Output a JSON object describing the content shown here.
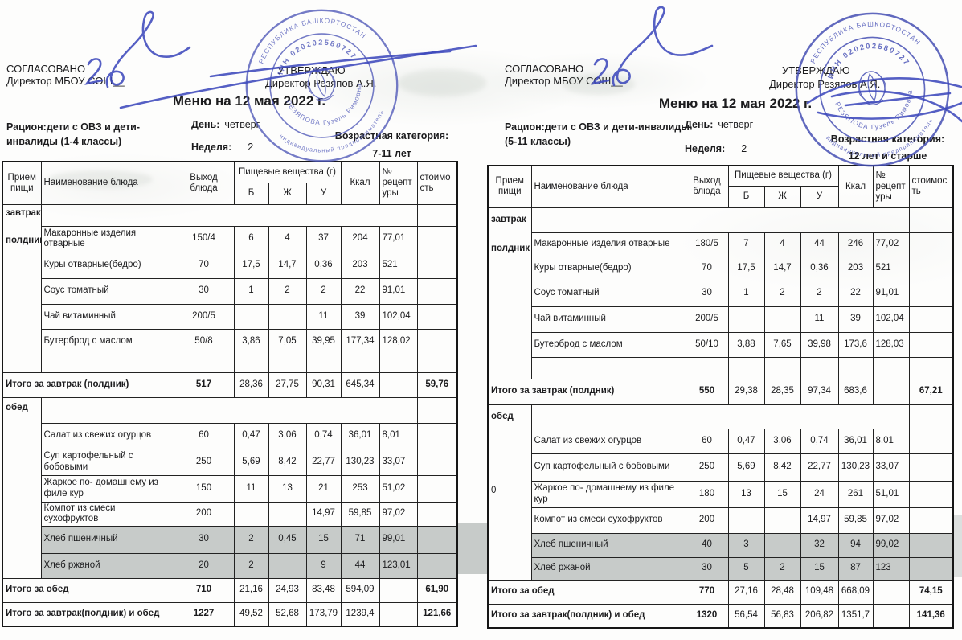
{
  "left_header": {
    "agreed": "СОГЛАСОВАНО",
    "agreed2": "Директор МБОУ СОШ__",
    "school_no": "2",
    "approved": "УТВЕРЖДАЮ",
    "approved2": "Директор Резяпов А.Я.",
    "title": "Меню на 12 мая  2022 г.",
    "ration1": "Рацион:дети с ОВЗ и дети-",
    "ration2": "инвалиды (1-4 классы)",
    "day_label": "День:",
    "day": "четверг",
    "week_label": "Неделя:",
    "week": "2",
    "age_label": "Возрастная категория:",
    "age": "7-11 лет"
  },
  "right_header": {
    "agreed": "СОГЛАСОВАНО",
    "agreed2": "Директор МБОУ СОШ__",
    "school_no": "2",
    "approved": "УТВЕРЖДАЮ",
    "approved2": "Директор Резяпов А.Я.",
    "title": "Меню на 12 мая  2022 г.",
    "ration1": "Рацион:дети с ОВЗ и дети-инвалиды",
    "ration2": "(5-11 классы)",
    "day_label": "День:",
    "day": "четверг",
    "week_label": "Неделя:",
    "week": "2",
    "age_label": "Возрастная категория:",
    "age": "12 лет и старше"
  },
  "columns": {
    "meal": "Прием пищи",
    "name": "Наименование блюда",
    "out": "Выход блюда",
    "nutrients": "Пищевые вещества (г)",
    "b": "Б",
    "zh": "Ж",
    "u": "У",
    "kcal": "Ккал",
    "rec": "№ рецептуры",
    "cost": "стоимость"
  },
  "left_table": {
    "rows": [
      {
        "type": "section",
        "labels": [
          "завтрак",
          "полдник"
        ]
      },
      {
        "type": "item",
        "name": "Макаронные изделия отварные",
        "out": "150/4",
        "b": "6",
        "zh": "4",
        "u": "37",
        "kcal": "204",
        "rec": "77,01"
      },
      {
        "type": "item",
        "name": "Куры отварные(бедро)",
        "out": "70",
        "b": "17,5",
        "zh": "14,7",
        "u": "0,36",
        "kcal": "203",
        "rec": "521"
      },
      {
        "type": "item",
        "name": "Соус томатный",
        "out": "30",
        "b": "1",
        "zh": "2",
        "u": "2",
        "kcal": "22",
        "rec": "91,01"
      },
      {
        "type": "item",
        "name": "Чай витаминный",
        "out": "200/5",
        "b": "",
        "zh": "",
        "u": "11",
        "kcal": "39",
        "rec": "102,04"
      },
      {
        "type": "item",
        "name": "Бутерброд с маслом",
        "out": "50/8",
        "b": "3,86",
        "zh": "7,05",
        "u": "39,95",
        "kcal": "177,34",
        "rec": "128,02"
      },
      {
        "type": "item",
        "name": "",
        "out": "",
        "b": "",
        "zh": "",
        "u": "",
        "kcal": "",
        "rec": ""
      },
      {
        "type": "total",
        "label": "Итого за завтрак (полдник)",
        "out": "517",
        "b": "28,36",
        "zh": "27,75",
        "u": "90,31",
        "kcal": "645,34",
        "rec": "",
        "cost": "59,76"
      },
      {
        "type": "section",
        "labels": [
          "обед"
        ]
      },
      {
        "type": "item",
        "name": "Салат из свежих огурцов",
        "out": "60",
        "b": "0,47",
        "zh": "3,06",
        "u": "0,74",
        "kcal": "36,01",
        "rec": "8,01"
      },
      {
        "type": "item",
        "name": "Суп картофельный с бобовыми",
        "out": "250",
        "b": "5,69",
        "zh": "8,42",
        "u": "22,77",
        "kcal": "130,23",
        "rec": "33,07"
      },
      {
        "type": "item",
        "name": "Жаркое по- домашнему из филе кур",
        "out": "150",
        "b": "11",
        "zh": "13",
        "u": "21",
        "kcal": "253",
        "rec": "51,02"
      },
      {
        "type": "item",
        "name": "Компот из смеси сухофруктов",
        "out": "200",
        "b": "",
        "zh": "",
        "u": "14,97",
        "kcal": "59,85",
        "rec": "97,02"
      },
      {
        "type": "item",
        "shaded": true,
        "name": "Хлеб пшеничный",
        "out": "30",
        "b": "2",
        "zh": "0,45",
        "u": "15",
        "kcal": "71",
        "rec": "99,01"
      },
      {
        "type": "item",
        "shaded": true,
        "name": "Хлеб ржаной",
        "out": "20",
        "b": "2",
        "zh": "",
        "u": "9",
        "kcal": "44",
        "rec": "123,01"
      },
      {
        "type": "total",
        "label": "Итого за обед",
        "out": "710",
        "b": "21,16",
        "zh": "24,93",
        "u": "83,48",
        "kcal": "594,09",
        "rec": "",
        "cost": "61,90"
      },
      {
        "type": "total",
        "label": "Итого за завтрак(полдник) и обед",
        "out": "1227",
        "b": "49,52",
        "zh": "52,68",
        "u": "173,79",
        "kcal": "1239,4",
        "rec": "",
        "cost": "121,66"
      }
    ]
  },
  "right_table": {
    "rows": [
      {
        "type": "section",
        "labels": [
          "завтрак",
          "полдник"
        ]
      },
      {
        "type": "item",
        "name": "Макаронные изделия отварные",
        "out": "180/5",
        "b": "7",
        "zh": "4",
        "u": "44",
        "kcal": "246",
        "rec": "77,02"
      },
      {
        "type": "item",
        "name": "Куры отварные(бедро)",
        "out": "70",
        "b": "17,5",
        "zh": "14,7",
        "u": "0,36",
        "kcal": "203",
        "rec": "521"
      },
      {
        "type": "item",
        "name": "Соус томатный",
        "out": "30",
        "b": "1",
        "zh": "2",
        "u": "2",
        "kcal": "22",
        "rec": "91,01"
      },
      {
        "type": "item",
        "name": "Чай витаминный",
        "out": "200/5",
        "b": "",
        "zh": "",
        "u": "11",
        "kcal": "39",
        "rec": "102,04"
      },
      {
        "type": "item",
        "name": "Бутерброд с маслом",
        "out": "50/10",
        "b": "3,88",
        "zh": "7,65",
        "u": "39,98",
        "kcal": "173,6",
        "rec": "128,03"
      },
      {
        "type": "item",
        "name": "",
        "out": "",
        "b": "",
        "zh": "",
        "u": "",
        "kcal": "",
        "rec": ""
      },
      {
        "type": "total",
        "label": "Итого за завтрак (полдник)",
        "out": "550",
        "b": "29,38",
        "zh": "28,35",
        "u": "97,34",
        "kcal": "683,6",
        "rec": "",
        "cost": "67,21"
      },
      {
        "type": "section",
        "labels": [
          "обед"
        ],
        "extra": "0"
      },
      {
        "type": "item",
        "name": "Салат из свежих огурцов",
        "out": "60",
        "b": "0,47",
        "zh": "3,06",
        "u": "0,74",
        "kcal": "36,01",
        "rec": "8,01"
      },
      {
        "type": "item",
        "name": "Суп картофельный с бобовыми",
        "out": "250",
        "b": "5,69",
        "zh": "8,42",
        "u": "22,77",
        "kcal": "130,23",
        "rec": "33,07"
      },
      {
        "type": "item",
        "name": "Жаркое по- домашнему из филе кур",
        "out": "180",
        "b": "13",
        "zh": "15",
        "u": "24",
        "kcal": "261",
        "rec": "51,01"
      },
      {
        "type": "item",
        "name": "Компот из смеси сухофруктов",
        "out": "200",
        "b": "",
        "zh": "",
        "u": "14,97",
        "kcal": "59,85",
        "rec": "97,02"
      },
      {
        "type": "item",
        "shaded": true,
        "name": "Хлеб пшеничный",
        "out": "40",
        "b": "3",
        "zh": "",
        "u": "32",
        "kcal": "94",
        "rec": "99,02"
      },
      {
        "type": "item",
        "shaded": true,
        "name": "Хлеб ржаной",
        "out": "30",
        "b": "5",
        "zh": "2",
        "u": "15",
        "kcal": "87",
        "rec": "123"
      },
      {
        "type": "total",
        "label": "Итого за обед",
        "out": "770",
        "b": "27,16",
        "zh": "28,48",
        "u": "109,48",
        "kcal": "668,09",
        "rec": "",
        "cost": "74,15"
      },
      {
        "type": "total",
        "label": "Итого за завтрак(полдник) и обед",
        "out": "1320",
        "b": "56,54",
        "zh": "56,83",
        "u": "206,82",
        "kcal": "1351,7",
        "rec": "",
        "cost": "141,36"
      }
    ]
  },
  "stamp": {
    "ring": "РЕСПУБЛИКА БАШКОРТОСТАН",
    "subtitle": "индивидуальный предприниматель",
    "inn": "ИНН 020202580727",
    "owner": "РЕЗЯПОВА Гузель Римовна"
  }
}
